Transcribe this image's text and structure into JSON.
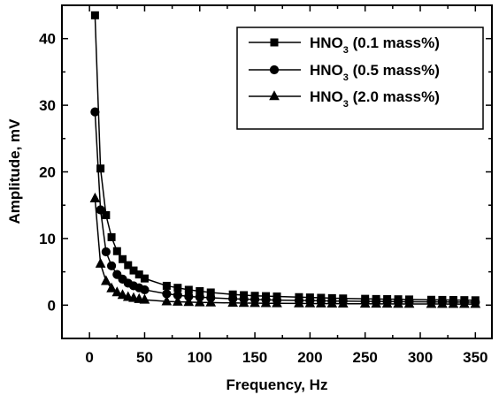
{
  "chart_data": {
    "type": "line",
    "xlabel": "Frequency, Hz",
    "ylabel": "Amplitude, mV",
    "xlim": [
      -25,
      365
    ],
    "ylim": [
      -5,
      45
    ],
    "x_ticks": [
      0,
      50,
      100,
      150,
      200,
      250,
      300,
      350
    ],
    "y_ticks": [
      0,
      10,
      20,
      30,
      40
    ],
    "legend_position": "top-right",
    "colors": {
      "line": "#000000",
      "frame": "#000000"
    },
    "series": [
      {
        "name": "HNO3 (0.1 mass%)",
        "label_main": "HNO",
        "label_sub": "3",
        "label_rest": " (0.1 mass%)",
        "marker": "square",
        "x": [
          5,
          10,
          15,
          20,
          25,
          30,
          35,
          40,
          45,
          50,
          70,
          80,
          90,
          100,
          110,
          130,
          140,
          150,
          160,
          170,
          190,
          200,
          210,
          220,
          230,
          250,
          260,
          270,
          280,
          290,
          310,
          320,
          330,
          340,
          350
        ],
        "values": [
          43.5,
          20.5,
          13.5,
          10.2,
          8.1,
          6.9,
          6.0,
          5.2,
          4.6,
          4.0,
          2.9,
          2.6,
          2.3,
          2.1,
          1.9,
          1.6,
          1.5,
          1.4,
          1.35,
          1.3,
          1.2,
          1.15,
          1.1,
          1.05,
          1.0,
          0.95,
          0.92,
          0.9,
          0.88,
          0.85,
          0.8,
          0.78,
          0.77,
          0.75,
          0.73
        ]
      },
      {
        "name": "HNO3 (0.5 mass%)",
        "label_main": "HNO",
        "label_sub": "3",
        "label_rest": " (0.5 mass%)",
        "marker": "circle",
        "x": [
          5,
          10,
          15,
          20,
          25,
          30,
          35,
          40,
          45,
          50,
          70,
          80,
          90,
          100,
          110,
          130,
          140,
          150,
          160,
          170,
          190,
          200,
          210,
          220,
          230,
          250,
          260,
          270,
          280,
          290,
          310,
          320,
          330,
          340,
          350
        ],
        "values": [
          29.0,
          14.3,
          8.0,
          5.9,
          4.6,
          3.9,
          3.3,
          2.9,
          2.6,
          2.3,
          1.7,
          1.5,
          1.3,
          1.2,
          1.1,
          0.95,
          0.9,
          0.85,
          0.8,
          0.75,
          0.7,
          0.68,
          0.65,
          0.62,
          0.6,
          0.57,
          0.55,
          0.53,
          0.52,
          0.5,
          0.48,
          0.47,
          0.46,
          0.45,
          0.44
        ]
      },
      {
        "name": "HNO3 (2.0 mass%)",
        "label_main": "HNO",
        "label_sub": "3",
        "label_rest": " (2.0 mass%)",
        "marker": "triangle",
        "x": [
          5,
          10,
          15,
          20,
          25,
          30,
          35,
          40,
          45,
          50,
          70,
          80,
          90,
          100,
          110,
          130,
          140,
          150,
          160,
          170,
          190,
          200,
          210,
          220,
          230,
          250,
          260,
          270,
          280,
          290,
          310,
          320,
          330,
          340,
          350
        ],
        "values": [
          16.0,
          6.2,
          3.6,
          2.5,
          1.9,
          1.5,
          1.2,
          1.05,
          0.9,
          0.8,
          0.55,
          0.5,
          0.45,
          0.4,
          0.38,
          0.33,
          0.31,
          0.3,
          0.28,
          0.27,
          0.25,
          0.24,
          0.23,
          0.22,
          0.21,
          0.2,
          0.19,
          0.19,
          0.18,
          0.18,
          0.17,
          0.17,
          0.16,
          0.16,
          0.16
        ]
      }
    ]
  }
}
